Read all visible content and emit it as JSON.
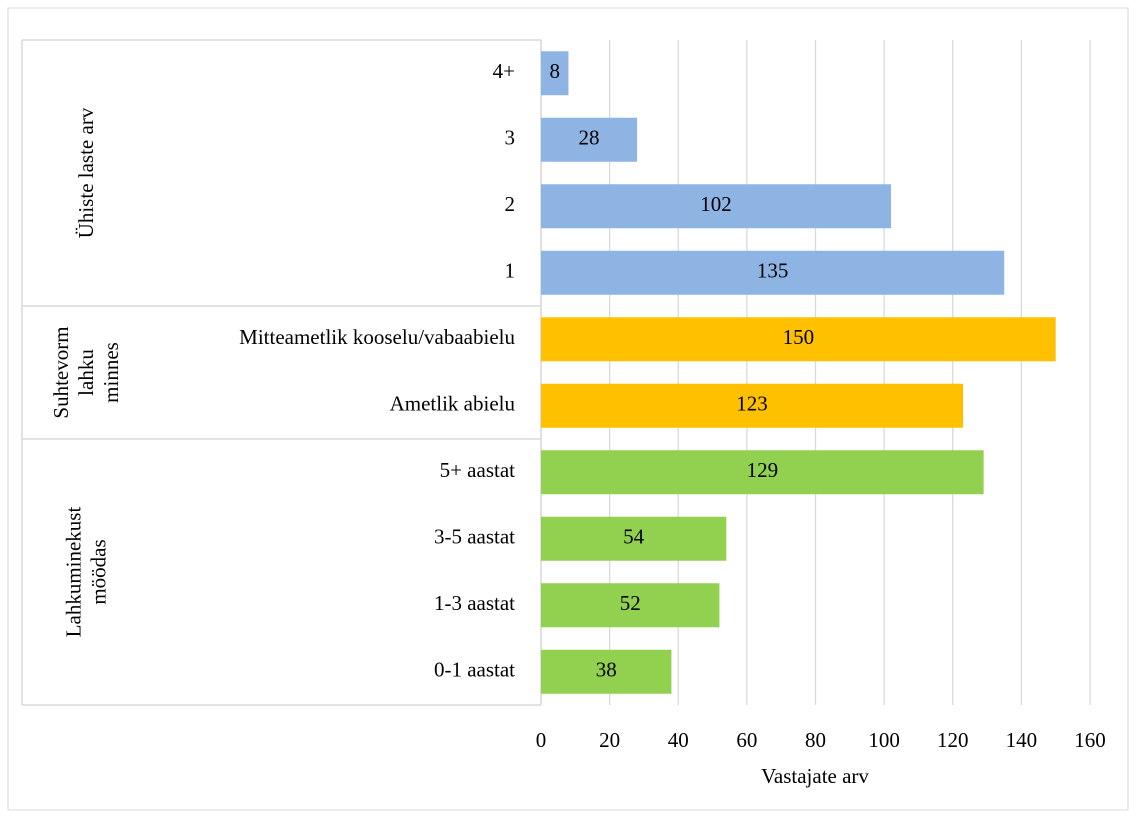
{
  "chart_data": {
    "type": "bar",
    "groups": [
      {
        "label_lines": [
          "Ühiste laste arv"
        ],
        "color": "#8eb4e3",
        "categories": [
          "4+",
          "3",
          "2",
          "1"
        ],
        "values": [
          8,
          28,
          102,
          135
        ]
      },
      {
        "label_lines": [
          "Suhtevorm",
          "lahku",
          "minnes"
        ],
        "color": "#ffc000",
        "categories": [
          "Mitteametlik kooselu/vabaabielu",
          "Ametlik abielu"
        ],
        "values": [
          150,
          123
        ]
      },
      {
        "label_lines": [
          "Lahkuminekust",
          "möödas"
        ],
        "color": "#92d050",
        "categories": [
          "5+ aastat",
          "3-5 aastat",
          "1-3 aastat",
          "0-1 aastat"
        ],
        "values": [
          129,
          54,
          52,
          38
        ]
      }
    ],
    "xlabel": "Vastajate arv",
    "xlim": [
      0,
      160
    ],
    "xticks": [
      0,
      20,
      40,
      60,
      80,
      100,
      120,
      140,
      160
    ],
    "grid": true
  }
}
